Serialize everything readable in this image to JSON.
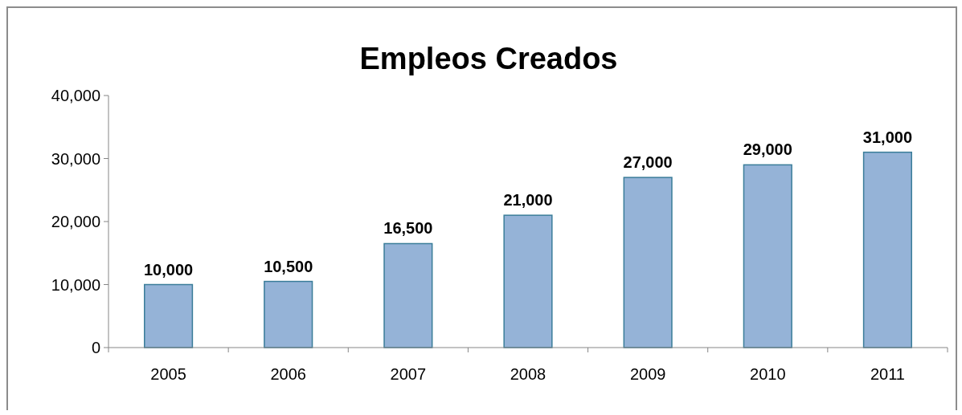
{
  "chart_data": {
    "type": "bar",
    "title": "Empleos Creados",
    "categories": [
      "2005",
      "2006",
      "2007",
      "2008",
      "2009",
      "2010",
      "2011"
    ],
    "values": [
      10000,
      10500,
      16500,
      21000,
      27000,
      29000,
      31000
    ],
    "color": "#95b3d7",
    "ylim": [
      0,
      40000
    ],
    "yticks": [
      {
        "value": 0,
        "label": "0"
      },
      {
        "value": 10000,
        "label": "10,000"
      },
      {
        "value": 20000,
        "label": "20,000"
      },
      {
        "value": 30000,
        "label": "30,000"
      },
      {
        "value": 40000,
        "label": "40,000"
      }
    ],
    "value_labels": [
      "10,000",
      "10,500",
      "16,500",
      "21,000",
      "27,000",
      "29,000",
      "31,000"
    ],
    "grid": false
  }
}
